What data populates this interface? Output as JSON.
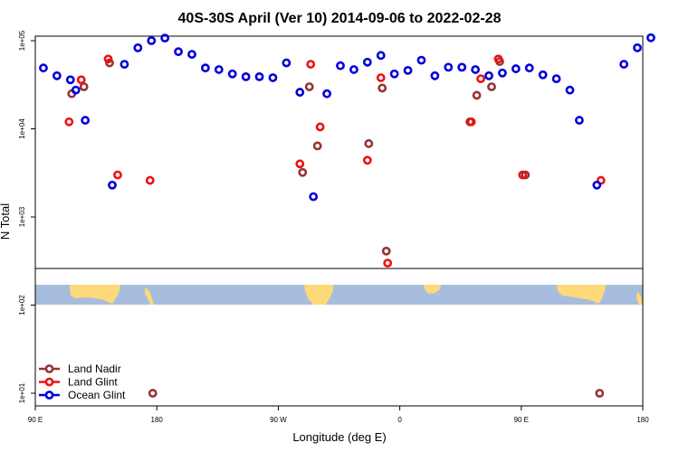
{
  "chart_data": {
    "type": "scatter",
    "title": "40S-30S April (Ver 10)   2014-09-06 to 2022-02-28",
    "xlabel": "Longitude (deg E)",
    "ylabel": "N Total",
    "y_scale": "log",
    "ylim": [
      6,
      110000
    ],
    "x_domain_order": "unwrapped from 90E eastward to 180E of the following cycle",
    "x_ticks": [
      {
        "pos": 90,
        "label": "90 E"
      },
      {
        "pos": 180,
        "label": "180"
      },
      {
        "pos": 270,
        "label": "90 W"
      },
      {
        "pos": 360,
        "label": "0"
      },
      {
        "pos": 450,
        "label": "90 E"
      },
      {
        "pos": 540,
        "label": "180"
      }
    ],
    "y_ticks": [
      {
        "value": 10,
        "label": "1e+01"
      },
      {
        "value": 100,
        "label": "1e+02"
      },
      {
        "value": 1000,
        "label": "1e+03"
      },
      {
        "value": 10000,
        "label": "1e+04"
      },
      {
        "value": 100000,
        "label": "1e+05"
      }
    ],
    "grid": false,
    "legend_position": "bottom-left",
    "map_strip": {
      "ocean_color": "#a7bddd",
      "land_color": "#fdd97a"
    },
    "series": [
      {
        "name": "Land Nadir",
        "color": "#993333",
        "points": [
          [
            117,
            25000
          ],
          [
            126,
            30000
          ],
          [
            145,
            56000
          ],
          [
            177,
            10
          ],
          [
            288,
            3200
          ],
          [
            293,
            30000
          ],
          [
            299,
            6400
          ],
          [
            337,
            6800
          ],
          [
            347,
            29000
          ],
          [
            350,
            410
          ],
          [
            412,
            12000
          ],
          [
            417,
            24000
          ],
          [
            428,
            30000
          ],
          [
            434,
            58000
          ],
          [
            453,
            3000
          ],
          [
            508,
            10
          ]
        ]
      },
      {
        "name": "Land Glint",
        "color": "#ee1111",
        "points": [
          [
            115,
            12000
          ],
          [
            124,
            36000
          ],
          [
            144,
            62000
          ],
          [
            151,
            3000
          ],
          [
            175,
            2600
          ],
          [
            286,
            4000
          ],
          [
            294,
            54000
          ],
          [
            301,
            10500
          ],
          [
            336,
            4400
          ],
          [
            346,
            38000
          ],
          [
            351,
            300
          ],
          [
            413,
            12000
          ],
          [
            420,
            37000
          ],
          [
            433,
            62000
          ],
          [
            451,
            3000
          ],
          [
            509,
            2600
          ]
        ]
      },
      {
        "name": "Ocean Glint",
        "color": "#0000dd",
        "points": [
          [
            96,
            49000
          ],
          [
            106,
            40000
          ],
          [
            116,
            36000
          ],
          [
            120,
            27500
          ],
          [
            127,
            12500
          ],
          [
            147,
            2300
          ],
          [
            156,
            54000
          ],
          [
            166,
            83000
          ],
          [
            176,
            100000
          ],
          [
            186,
            107000
          ],
          [
            196,
            75000
          ],
          [
            206,
            70000
          ],
          [
            216,
            49000
          ],
          [
            226,
            47000
          ],
          [
            236,
            42000
          ],
          [
            246,
            39000
          ],
          [
            256,
            39000
          ],
          [
            266,
            38000
          ],
          [
            276,
            56000
          ],
          [
            286,
            26000
          ],
          [
            296,
            1700
          ],
          [
            306,
            25000
          ],
          [
            316,
            52000
          ],
          [
            326,
            47000
          ],
          [
            336,
            57000
          ],
          [
            346,
            68000
          ],
          [
            356,
            42000
          ],
          [
            366,
            46000
          ],
          [
            376,
            60000
          ],
          [
            386,
            40000
          ],
          [
            396,
            50000
          ],
          [
            406,
            50000
          ],
          [
            416,
            47000
          ],
          [
            426,
            40000
          ],
          [
            436,
            43000
          ],
          [
            446,
            48000
          ],
          [
            456,
            49000
          ],
          [
            466,
            41000
          ],
          [
            476,
            37000
          ],
          [
            486,
            27500
          ],
          [
            493,
            12500
          ],
          [
            506,
            2300
          ],
          [
            526,
            54000
          ],
          [
            536,
            83000
          ],
          [
            546,
            108000
          ]
        ]
      }
    ]
  }
}
